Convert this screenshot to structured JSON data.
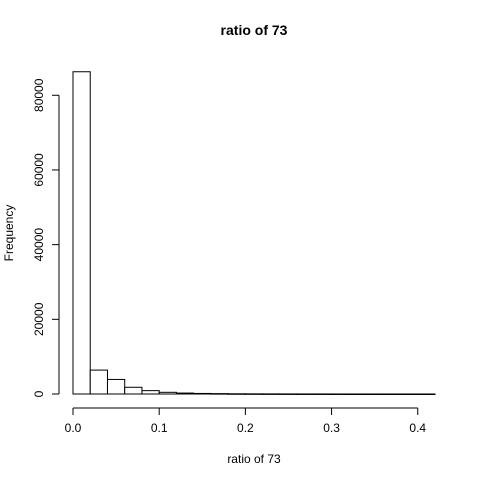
{
  "chart_data": {
    "type": "bar",
    "title": "ratio of 73",
    "xlabel": "ratio of 73",
    "ylabel": "Frequency",
    "xlim": [
      0,
      0.42
    ],
    "ylim": [
      0,
      86500
    ],
    "x_ticks": [
      0.0,
      0.1,
      0.2,
      0.3,
      0.4
    ],
    "x_tick_labels": [
      "0.0",
      "0.1",
      "0.2",
      "0.3",
      "0.4"
    ],
    "y_ticks": [
      0,
      20000,
      40000,
      60000,
      80000
    ],
    "y_tick_labels": [
      "0",
      "20000",
      "40000",
      "60000",
      "80000"
    ],
    "bin_width": 0.02,
    "bins": [
      {
        "from": 0.0,
        "to": 0.02,
        "count": 86300
      },
      {
        "from": 0.02,
        "to": 0.04,
        "count": 6400
      },
      {
        "from": 0.04,
        "to": 0.06,
        "count": 3900
      },
      {
        "from": 0.06,
        "to": 0.08,
        "count": 1800
      },
      {
        "from": 0.08,
        "to": 0.1,
        "count": 900
      },
      {
        "from": 0.1,
        "to": 0.12,
        "count": 450
      },
      {
        "from": 0.12,
        "to": 0.14,
        "count": 250
      },
      {
        "from": 0.14,
        "to": 0.16,
        "count": 150
      },
      {
        "from": 0.16,
        "to": 0.18,
        "count": 100
      },
      {
        "from": 0.18,
        "to": 0.2,
        "count": 60
      },
      {
        "from": 0.2,
        "to": 0.22,
        "count": 40
      },
      {
        "from": 0.22,
        "to": 0.24,
        "count": 30
      },
      {
        "from": 0.24,
        "to": 0.26,
        "count": 20
      },
      {
        "from": 0.26,
        "to": 0.28,
        "count": 15
      },
      {
        "from": 0.28,
        "to": 0.3,
        "count": 10
      },
      {
        "from": 0.3,
        "to": 0.32,
        "count": 8
      },
      {
        "from": 0.32,
        "to": 0.34,
        "count": 6
      },
      {
        "from": 0.34,
        "to": 0.36,
        "count": 5
      },
      {
        "from": 0.36,
        "to": 0.38,
        "count": 4
      },
      {
        "from": 0.38,
        "to": 0.4,
        "count": 3
      },
      {
        "from": 0.4,
        "to": 0.42,
        "count": 2
      }
    ],
    "grid": false,
    "legend": "none"
  }
}
